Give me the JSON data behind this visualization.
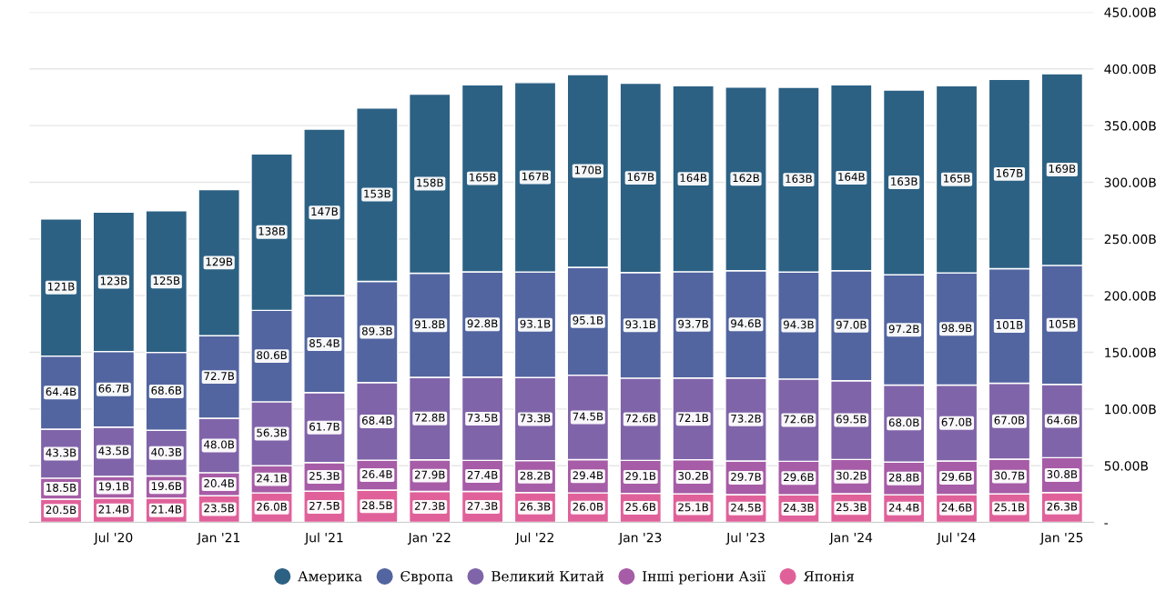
{
  "chart_data": {
    "type": "bar",
    "stacked": true,
    "categories": [
      null,
      "Jul '20",
      null,
      "Jan '21",
      null,
      "Jul '21",
      null,
      "Jan '22",
      null,
      "Jul '22",
      null,
      "Jan '23",
      null,
      "Jul '23",
      null,
      "Jan '24",
      null,
      "Jul '24",
      null,
      "Jan '25"
    ],
    "series": [
      {
        "name": "Японія",
        "color": "#e0619a",
        "values": [
          20.5,
          21.4,
          21.4,
          23.5,
          26.0,
          27.5,
          28.5,
          27.3,
          27.3,
          26.3,
          26.0,
          25.6,
          25.1,
          24.5,
          24.3,
          25.3,
          24.4,
          24.6,
          25.1,
          26.3
        ],
        "value_labels": [
          "20.5B",
          "21.4B",
          "21.4B",
          "23.5B",
          "26.0B",
          "27.5B",
          "28.5B",
          "27.3B",
          "27.3B",
          "26.3B",
          "26.0B",
          "25.6B",
          "25.1B",
          "24.5B",
          "24.3B",
          "25.3B",
          "24.4B",
          "24.6B",
          "25.1B",
          "26.3B"
        ]
      },
      {
        "name": "Інші регіони Азії",
        "color": "#a65ca6",
        "values": [
          18.5,
          19.1,
          19.6,
          20.4,
          24.1,
          25.3,
          26.4,
          27.9,
          27.4,
          28.2,
          29.4,
          29.1,
          30.2,
          29.7,
          29.6,
          30.2,
          28.8,
          29.6,
          30.7,
          30.8
        ],
        "value_labels": [
          "18.5B",
          "19.1B",
          "19.6B",
          "20.4B",
          "24.1B",
          "25.3B",
          "26.4B",
          "27.9B",
          "27.4B",
          "28.2B",
          "29.4B",
          "29.1B",
          "30.2B",
          "29.7B",
          "29.6B",
          "30.2B",
          "28.8B",
          "29.6B",
          "30.7B",
          "30.8B"
        ]
      },
      {
        "name": "Великий Китай",
        "color": "#8064a9",
        "values": [
          43.3,
          43.5,
          40.3,
          48.0,
          56.3,
          61.7,
          68.4,
          72.8,
          73.5,
          73.3,
          74.5,
          72.6,
          72.1,
          73.2,
          72.6,
          69.5,
          68.0,
          67.0,
          67.0,
          64.6
        ],
        "value_labels": [
          "43.3B",
          "43.5B",
          "40.3B",
          "48.0B",
          "56.3B",
          "61.7B",
          "68.4B",
          "72.8B",
          "73.5B",
          "73.3B",
          "74.5B",
          "72.6B",
          "72.1B",
          "73.2B",
          "72.6B",
          "69.5B",
          "68.0B",
          "67.0B",
          "67.0B",
          "64.6B"
        ]
      },
      {
        "name": "Європа",
        "color": "#5265a0",
        "values": [
          64.4,
          66.7,
          68.6,
          72.7,
          80.6,
          85.4,
          89.3,
          91.8,
          92.8,
          93.1,
          95.1,
          93.1,
          93.7,
          94.6,
          94.3,
          97.0,
          97.2,
          98.9,
          101,
          105
        ],
        "value_labels": [
          "64.4B",
          "66.7B",
          "68.6B",
          "72.7B",
          "80.6B",
          "85.4B",
          "89.3B",
          "91.8B",
          "92.8B",
          "93.1B",
          "95.1B",
          "93.1B",
          "93.7B",
          "94.6B",
          "94.3B",
          "97.0B",
          "97.2B",
          "98.9B",
          "101B",
          "105B"
        ]
      },
      {
        "name": "Америка",
        "color": "#2c6184",
        "values": [
          121,
          123,
          125,
          129,
          138,
          147,
          153,
          158,
          165,
          167,
          170,
          167,
          164,
          162,
          163,
          164,
          163,
          165,
          167,
          169
        ],
        "value_labels": [
          "121B",
          "123B",
          "125B",
          "129B",
          "138B",
          "147B",
          "153B",
          "158B",
          "165B",
          "167B",
          "170B",
          "167B",
          "164B",
          "162B",
          "163B",
          "164B",
          "163B",
          "165B",
          "167B",
          "169B"
        ]
      }
    ],
    "ylim": [
      0,
      450
    ],
    "yticks": [
      {
        "value": 0,
        "label": "-"
      },
      {
        "value": 50,
        "label": "50.00B"
      },
      {
        "value": 100,
        "label": "100.00B"
      },
      {
        "value": 150,
        "label": "150.00B"
      },
      {
        "value": 200,
        "label": "200.00B"
      },
      {
        "value": 250,
        "label": "250.00B"
      },
      {
        "value": 300,
        "label": "300.00B"
      },
      {
        "value": 350,
        "label": "350.00B"
      },
      {
        "value": 400,
        "label": "400.00B"
      },
      {
        "value": 450,
        "label": "450.00B"
      }
    ],
    "grid": "y",
    "legend": "bottom",
    "marker": "circle"
  }
}
